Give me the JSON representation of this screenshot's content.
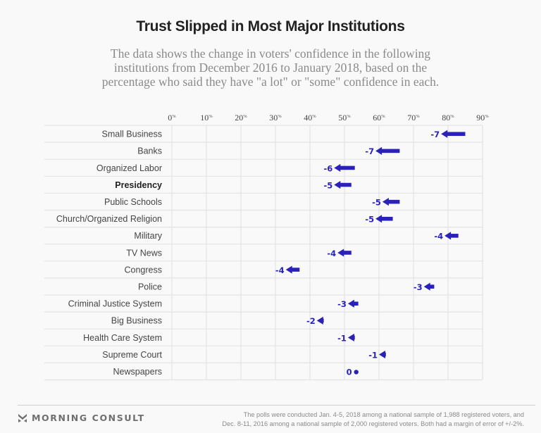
{
  "header": {
    "title": "Trust Slipped in Most Major Institutions",
    "subtitle": "The data shows the change in voters' confidence in the following institutions from December 2016 to January 2018, based on the percentage who said they have \"a lot\" or \"some\" confidence in each."
  },
  "chart_data": {
    "type": "arrow-dot",
    "title": "Trust Slipped in Most Major Institutions",
    "xlabel": "",
    "ylabel": "",
    "x_ticks": [
      "0%",
      "10%",
      "20%",
      "30%",
      "40%",
      "50%",
      "60%",
      "70%",
      "80%",
      "90%"
    ],
    "xlim": [
      0,
      90
    ],
    "grid": true,
    "legend": "none",
    "arrow_color": "#2a22b8",
    "series": [
      {
        "name": "December 2016",
        "values": [
          85,
          66,
          53,
          52,
          66,
          64,
          83,
          52,
          37,
          76,
          54,
          44,
          53,
          62,
          53
        ]
      },
      {
        "name": "January 2018",
        "values": [
          78,
          59,
          47,
          47,
          61,
          59,
          79,
          48,
          33,
          73,
          51,
          42,
          51,
          60,
          53
        ]
      }
    ],
    "categories": [
      "Small Business",
      "Banks",
      "Organized Labor",
      "Presidency",
      "Public Schools",
      "Church/Organized Religion",
      "Military",
      "TV News",
      "Congress",
      "Police",
      "Criminal Justice System",
      "Big Business",
      "Health Care System",
      "Supreme Court",
      "Newspapers"
    ],
    "highlighted": [
      "Presidency"
    ],
    "change_labels": [
      "-7",
      "-7",
      "-6",
      "-5",
      "-5",
      "-5",
      "-4",
      "-4",
      "-4",
      "-3",
      "-3",
      "-2",
      "-1",
      "-1",
      "0"
    ]
  },
  "footer": {
    "brand": "MORNING CONSULT",
    "logo_icon": "morning-consult-chevron-icon",
    "note_line1": "The polls were conducted Jan. 4-5, 2018 among a national sample of 1,988 registered voters, and",
    "note_line2": "Dec. 8-11, 2016 among a national sample of 2,000 registered voters. Both had a margin of error of +/-2%."
  }
}
